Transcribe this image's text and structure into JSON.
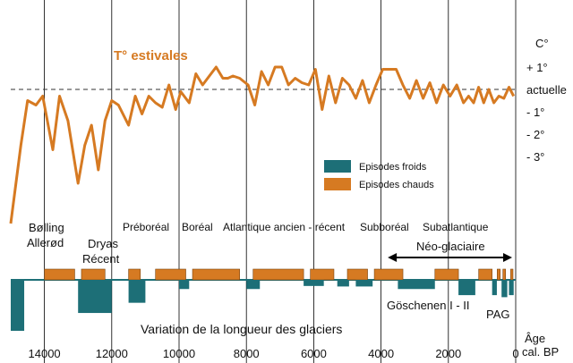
{
  "chart_data": {
    "type": "line",
    "title": "T° estivales",
    "unit_label": "C°",
    "right_axis_ticks": [
      {
        "label": "+ 1°",
        "value": 1
      },
      {
        "label": "actuelle",
        "value": 0
      },
      {
        "label": "- 1°",
        "value": -1
      },
      {
        "label": "- 2°",
        "value": -2
      },
      {
        "label": "- 3°",
        "value": -3
      }
    ],
    "xlabel": "Âge cal. BP",
    "xlabel_line1": "Âge",
    "xlabel_line2": "cal. BP",
    "x_ticks": [
      14000,
      12000,
      10000,
      8000,
      6000,
      4000,
      2000,
      0
    ],
    "x_tick_labels": [
      "14000",
      "12000",
      "10000",
      "8000",
      "6000",
      "4000",
      "2000",
      "0"
    ],
    "xlim": [
      15000,
      0
    ],
    "ylim": [
      -6.3,
      2.1
    ],
    "grid": "vertical",
    "temperature_series": {
      "name": "T° estivales",
      "x": [
        15000,
        14700,
        14500,
        14250,
        14050,
        13750,
        13550,
        13300,
        13000,
        12800,
        12600,
        12400,
        12200,
        12000,
        11800,
        11500,
        11300,
        11100,
        10900,
        10700,
        10500,
        10300,
        10100,
        9950,
        9700,
        9500,
        9300,
        9100,
        8900,
        8700,
        8550,
        8400,
        8200,
        7950,
        7750,
        7550,
        7350,
        7150,
        6950,
        6750,
        6550,
        6350,
        6150,
        5950,
        5750,
        5550,
        5350,
        5150,
        4950,
        4750,
        4550,
        4350,
        4150,
        3950,
        3750,
        3550,
        3350,
        3150,
        2950,
        2750,
        2550,
        2350,
        2150,
        1950,
        1750,
        1550,
        1400,
        1250,
        1100,
        950,
        800,
        650,
        500,
        350,
        200,
        60
      ],
      "values": [
        -6.0,
        -2.5,
        -0.5,
        -0.7,
        -0.3,
        -2.7,
        -0.3,
        -1.4,
        -4.2,
        -2.5,
        -1.6,
        -3.6,
        -1.4,
        -0.5,
        -0.7,
        -1.6,
        -0.3,
        -1.1,
        -0.3,
        -0.6,
        -0.8,
        0.2,
        -0.9,
        -0.1,
        -0.6,
        0.7,
        0.2,
        0.6,
        1.0,
        0.5,
        0.5,
        0.6,
        0.5,
        0.2,
        -0.7,
        0.8,
        0.2,
        1.0,
        1.0,
        0.2,
        0.5,
        0.3,
        0.2,
        0.9,
        -0.9,
        0.6,
        -0.6,
        0.5,
        0.2,
        -0.4,
        0.4,
        -0.6,
        0.2,
        0.9,
        0.9,
        0.9,
        0.2,
        -0.4,
        0.4,
        -0.4,
        0.3,
        -0.6,
        0.2,
        -0.3,
        0.2,
        -0.6,
        -0.3,
        -0.6,
        0.1,
        -0.6,
        0.0,
        -0.6,
        -0.3,
        -0.4,
        0.1,
        -0.3
      ]
    },
    "periods": [
      {
        "name_lines": [
          "Bølling",
          "Allerød"
        ]
      },
      {
        "name_lines": [
          "Dryas",
          "Récent"
        ]
      },
      {
        "name_lines": [
          "Préboréal"
        ]
      },
      {
        "name_lines": [
          "Boréal"
        ]
      },
      {
        "name_lines": [
          "Atlantique ancien - récent"
        ]
      },
      {
        "name_lines": [
          "Subboréal"
        ]
      },
      {
        "name_lines": [
          "Subatlantique"
        ]
      }
    ],
    "neoglaciaire": {
      "label": "Néo-glaciaire",
      "from": 3800,
      "to": 0
    },
    "glacier_series_title": "Variation de la longueur des glaciers",
    "legend": {
      "position": "center-right",
      "items": [
        {
          "label": "Episodes froids",
          "color": "#1d6f77"
        },
        {
          "label": "Episodes chauds",
          "color": "#d67a22"
        }
      ]
    },
    "warm_episodes": [
      {
        "from": 14000,
        "to": 13100
      },
      {
        "from": 12900,
        "to": 12200
      },
      {
        "from": 11500,
        "to": 11150
      },
      {
        "from": 10700,
        "to": 9800
      },
      {
        "from": 9600,
        "to": 8200
      },
      {
        "from": 7800,
        "to": 6300
      },
      {
        "from": 6100,
        "to": 5400
      },
      {
        "from": 5000,
        "to": 4400
      },
      {
        "from": 4200,
        "to": 3350
      },
      {
        "from": 2400,
        "to": 1700
      },
      {
        "from": 1100,
        "to": 700
      },
      {
        "from": 550,
        "to": 460
      },
      {
        "from": 380,
        "to": 300
      },
      {
        "from": 150,
        "to": 80
      }
    ],
    "cold_episodes": [
      {
        "from": 15000,
        "to": 14600,
        "depth": 1.0
      },
      {
        "from": 13000,
        "to": 12000,
        "depth": 0.65
      },
      {
        "from": 11500,
        "to": 11000,
        "depth": 0.45
      },
      {
        "from": 10000,
        "to": 9700,
        "depth": 0.18
      },
      {
        "from": 8000,
        "to": 7600,
        "depth": 0.18
      },
      {
        "from": 6300,
        "to": 5700,
        "depth": 0.12
      },
      {
        "from": 5300,
        "to": 4950,
        "depth": 0.13
      },
      {
        "from": 4750,
        "to": 4250,
        "depth": 0.13
      },
      {
        "from": 3500,
        "to": 2400,
        "depth": 0.18
      },
      {
        "from": 1700,
        "to": 1200,
        "depth": 0.3
      },
      {
        "from": 700,
        "to": 560,
        "depth": 0.3
      },
      {
        "from": 420,
        "to": 250,
        "depth": 0.34
      },
      {
        "from": 200,
        "to": 60,
        "depth": 0.3
      }
    ],
    "annotations": [
      {
        "text": "Göschenen I - II"
      },
      {
        "text": "PAG"
      }
    ],
    "colors": {
      "temperature": "#d67a22",
      "warm": "#d67a22",
      "cold": "#1d6f77",
      "grid": "#000000"
    }
  }
}
